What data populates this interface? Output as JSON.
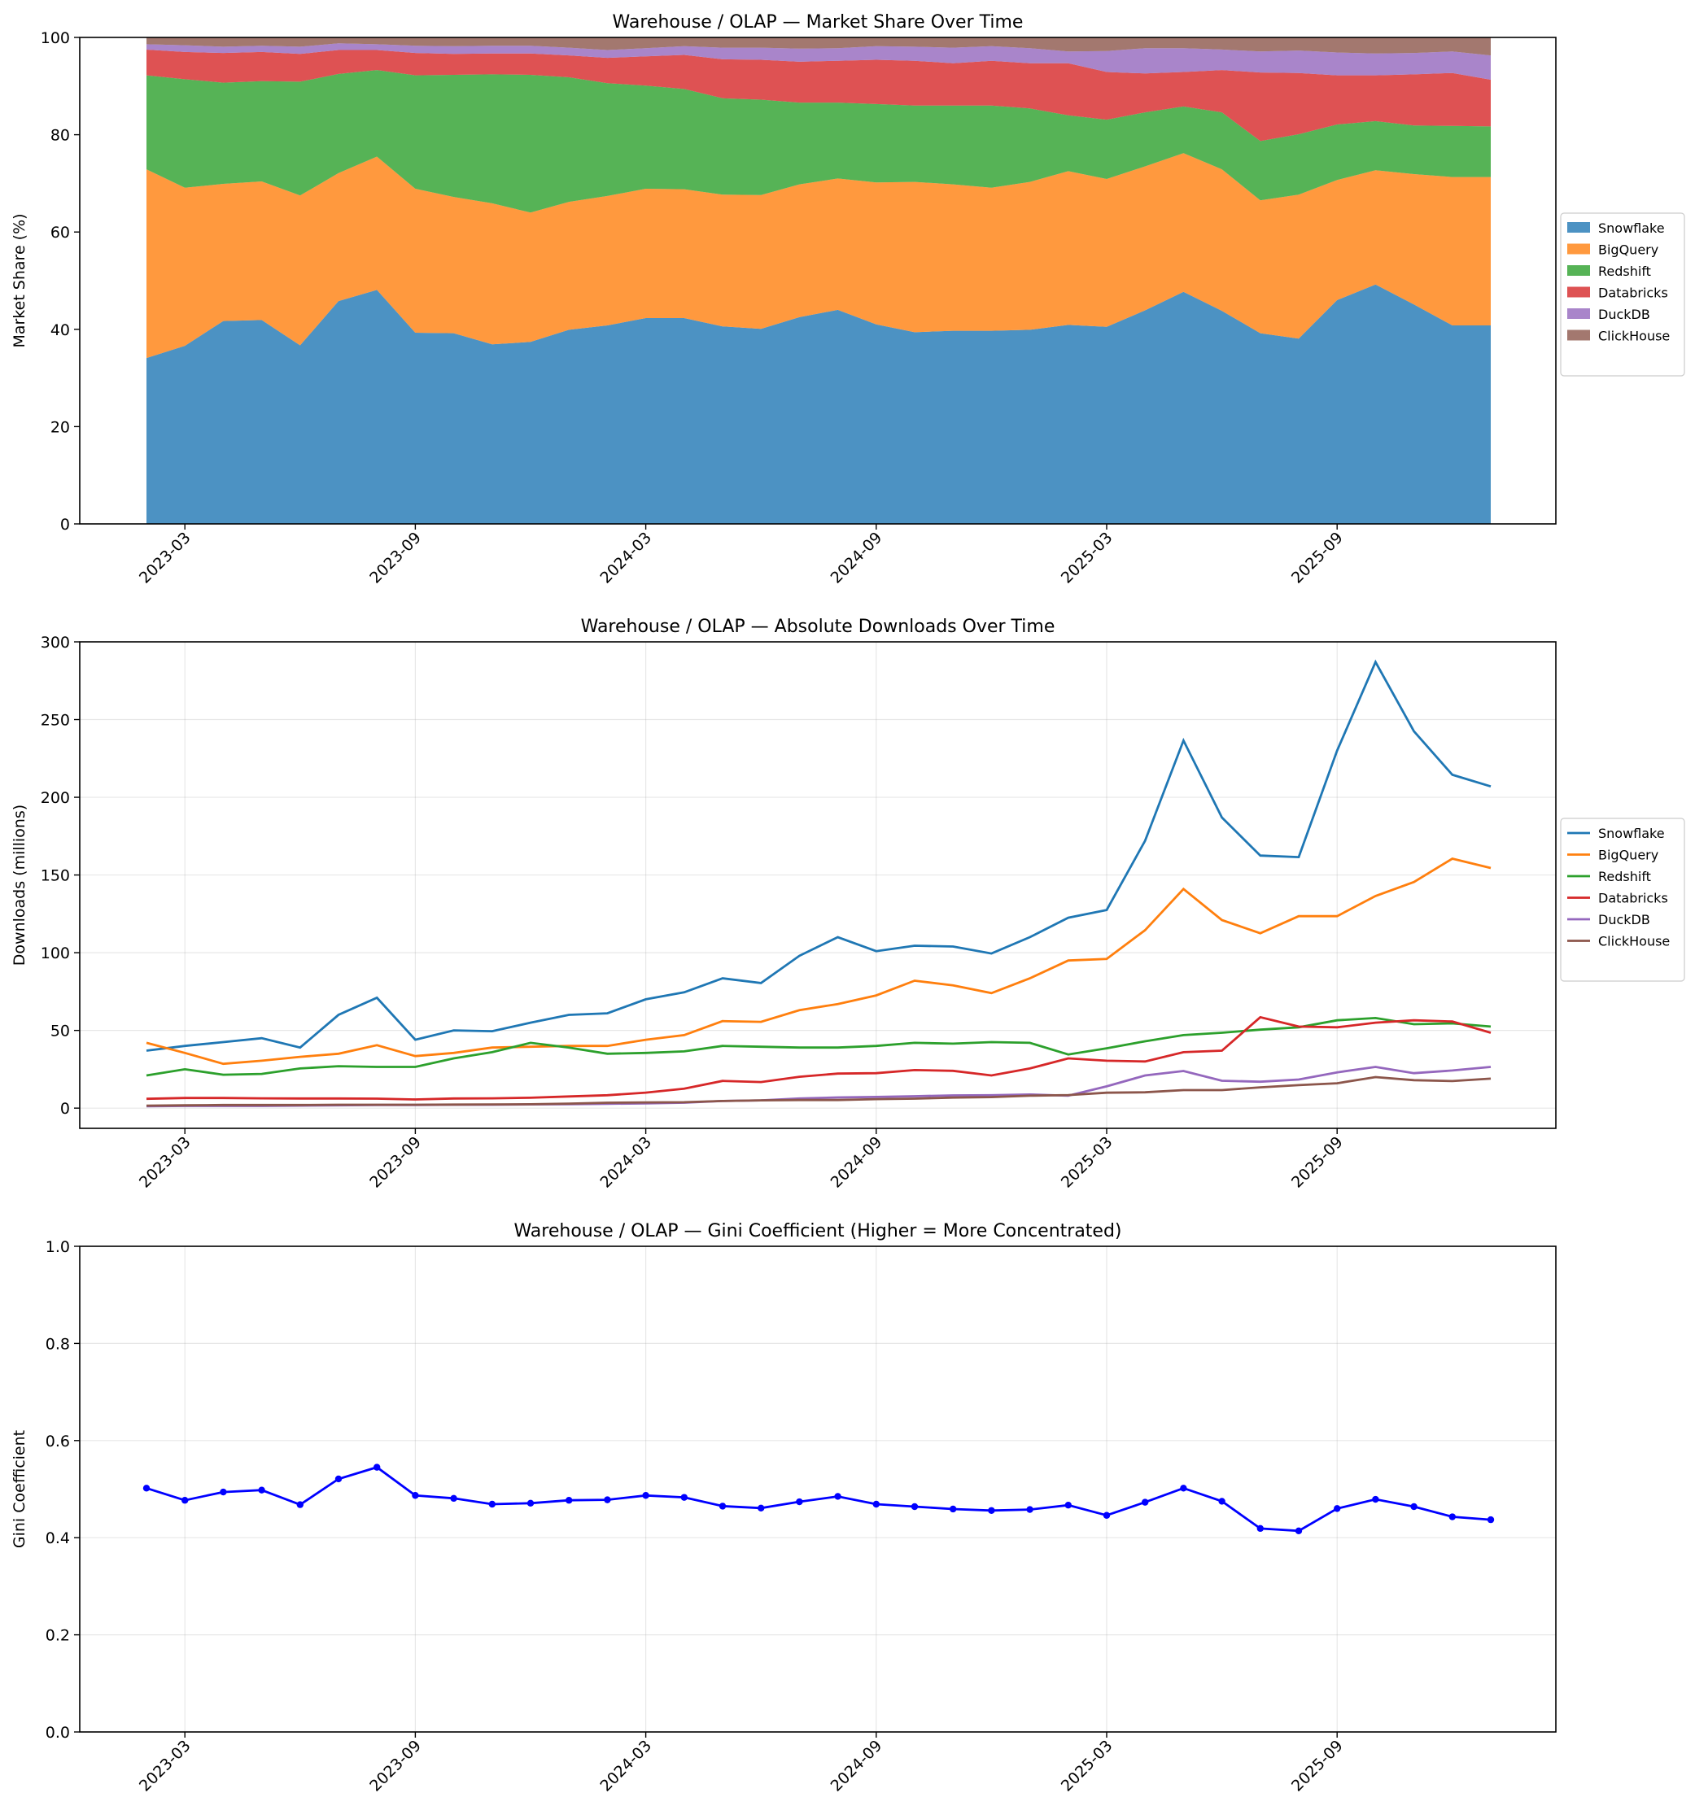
{
  "chart_data": [
    {
      "type": "area",
      "stacked": true,
      "title": "Warehouse / OLAP — Market Share Over Time",
      "ylabel": "Market Share (%)",
      "xlabel": "",
      "ylim": [
        0,
        100
      ],
      "yticks": [
        0,
        20,
        40,
        60,
        80,
        100
      ],
      "xticks": [
        "2023-03",
        "2023-09",
        "2024-03",
        "2024-09",
        "2025-03",
        "2025-09"
      ],
      "grid": false,
      "legend": "center right, outside plot",
      "x": [
        "2023-02",
        "2023-03",
        "2023-04",
        "2023-05",
        "2023-06",
        "2023-07",
        "2023-08",
        "2023-09",
        "2023-10",
        "2023-11",
        "2023-12",
        "2024-01",
        "2024-02",
        "2024-03",
        "2024-04",
        "2024-05",
        "2024-06",
        "2024-07",
        "2024-08",
        "2024-09",
        "2024-10",
        "2024-11",
        "2024-12",
        "2025-01",
        "2025-02",
        "2025-03",
        "2025-04",
        "2025-05",
        "2025-06",
        "2025-07",
        "2025-08",
        "2025-09",
        "2025-10",
        "2025-11",
        "2025-12",
        "2026-01"
      ],
      "series": [
        {
          "name": "Snowflake",
          "color": "#1f77b4",
          "values": [
            34.1,
            36.6,
            41.7,
            41.9,
            36.7,
            45.8,
            48.1,
            39.3,
            39.2,
            36.9,
            37.4,
            39.9,
            40.8,
            42.3,
            42.3,
            40.6,
            40.1,
            42.5,
            44.0,
            41.0,
            39.4,
            39.7,
            39.7,
            39.9,
            40.9,
            40.5,
            43.9,
            47.7,
            43.8,
            39.2,
            38.1,
            46.0,
            49.2,
            45.1,
            40.8,
            40.8
          ],
          "values_raw_cum": [
            34.1,
            36.6,
            41.7,
            41.9,
            36.7,
            45.8,
            48.1,
            39.3,
            39.2,
            36.9,
            37.4,
            39.9,
            40.8,
            42.3,
            42.3,
            40.6,
            40.1,
            42.5,
            44.0,
            41.0,
            39.4,
            39.7,
            39.7,
            39.9,
            40.9,
            40.5,
            43.9,
            47.7,
            43.8,
            39.2,
            38.1,
            46.0,
            49.2,
            45.1,
            40.8,
            40.8
          ]
        },
        {
          "name": "BigQuery",
          "color": "#ff7f0e",
          "values": [
            38.8,
            32.5,
            28.2,
            28.5,
            30.8,
            26.3,
            27.4,
            29.6,
            28.0,
            29.0,
            26.6,
            26.3,
            26.6,
            26.6,
            26.5,
            27.1,
            27.5,
            27.3,
            27.0,
            29.2,
            30.9,
            30.1,
            29.4,
            30.4,
            31.6,
            30.4,
            29.6,
            28.5,
            29.1,
            27.3,
            29.6,
            24.7,
            23.5,
            26.8,
            30.5,
            30.5
          ]
        },
        {
          "name": "Redshift",
          "color": "#2ca02c",
          "values": [
            19.3,
            22.3,
            20.8,
            20.6,
            23.4,
            20.4,
            17.8,
            23.3,
            25.1,
            26.5,
            28.3,
            25.6,
            23.2,
            21.2,
            20.6,
            19.8,
            19.6,
            16.8,
            15.6,
            16.1,
            15.7,
            16.2,
            16.9,
            15.1,
            11.5,
            12.2,
            11.1,
            9.6,
            11.7,
            12.2,
            12.4,
            11.4,
            10.1,
            10.0,
            10.5,
            10.4
          ]
        },
        {
          "name": "Databricks",
          "color": "#d62728",
          "values": [
            5.3,
            5.6,
            6.1,
            6.0,
            5.7,
            4.9,
            4.1,
            4.6,
            4.3,
            4.3,
            4.4,
            4.5,
            5.2,
            6.0,
            7.0,
            8.0,
            8.2,
            8.4,
            8.6,
            9.1,
            9.2,
            8.7,
            9.2,
            9.3,
            10.7,
            9.8,
            8.0,
            7.1,
            8.7,
            14.1,
            12.6,
            10.1,
            9.4,
            10.5,
            10.9,
            9.6
          ]
        },
        {
          "name": "DuckDB",
          "color": "#9467bd",
          "values": [
            1.1,
            1.4,
            1.3,
            1.3,
            1.5,
            1.4,
            1.2,
            1.5,
            1.6,
            1.6,
            1.6,
            1.6,
            1.6,
            1.7,
            1.8,
            2.4,
            2.5,
            2.7,
            2.6,
            2.8,
            2.9,
            3.2,
            3.0,
            3.1,
            2.4,
            4.3,
            5.2,
            4.9,
            4.2,
            4.3,
            4.6,
            4.7,
            4.5,
            4.4,
            4.4,
            5.0
          ]
        },
        {
          "name": "ClickHouse",
          "color": "#8c564b",
          "values": [
            1.4,
            1.6,
            1.9,
            1.7,
            1.9,
            1.2,
            1.4,
            1.7,
            1.8,
            1.7,
            1.7,
            2.1,
            2.6,
            2.2,
            1.8,
            2.1,
            2.1,
            2.3,
            2.2,
            1.8,
            1.9,
            2.1,
            1.8,
            2.2,
            2.9,
            2.8,
            2.2,
            2.2,
            2.5,
            2.9,
            2.7,
            3.1,
            3.3,
            3.2,
            2.9,
            3.7
          ]
        }
      ]
    },
    {
      "type": "line",
      "title": "Warehouse / OLAP — Absolute Downloads Over Time",
      "ylabel": "Downloads (millions)",
      "xlabel": "",
      "ylim": [
        -13,
        300
      ],
      "yticks": [
        0,
        50,
        100,
        150,
        200,
        250,
        300
      ],
      "xticks": [
        "2023-03",
        "2023-09",
        "2024-03",
        "2024-09",
        "2025-03",
        "2025-09"
      ],
      "grid": true,
      "legend": "center right, outside plot",
      "x": [
        "2023-02",
        "2023-03",
        "2023-04",
        "2023-05",
        "2023-06",
        "2023-07",
        "2023-08",
        "2023-09",
        "2023-10",
        "2023-11",
        "2023-12",
        "2024-01",
        "2024-02",
        "2024-03",
        "2024-04",
        "2024-05",
        "2024-06",
        "2024-07",
        "2024-08",
        "2024-09",
        "2024-10",
        "2024-11",
        "2024-12",
        "2025-01",
        "2025-02",
        "2025-03",
        "2025-04",
        "2025-05",
        "2025-06",
        "2025-07",
        "2025-08",
        "2025-09",
        "2025-10",
        "2025-11",
        "2025-12",
        "2026-01"
      ],
      "series": [
        {
          "name": "Snowflake",
          "color": "#1f77b4",
          "values": [
            37,
            40,
            42.5,
            45,
            39,
            60,
            71,
            44,
            50,
            49.5,
            55,
            60,
            61,
            70,
            74.5,
            83.5,
            80.5,
            98,
            110,
            101,
            104.5,
            104,
            99.5,
            110,
            122.5,
            127.5,
            172,
            236.5,
            187,
            162.5,
            161.5,
            230,
            287,
            242.5,
            214.5,
            207
          ]
        },
        {
          "name": "BigQuery",
          "color": "#ff7f0e",
          "values": [
            42,
            35.5,
            28.5,
            30.5,
            33,
            35,
            40.5,
            33.5,
            35.5,
            39,
            39.5,
            40,
            40,
            44,
            47,
            56,
            55.5,
            63,
            67,
            72.5,
            82,
            79,
            74,
            83.5,
            95,
            96,
            114.5,
            141,
            121,
            112.5,
            123.5,
            123.5,
            136.5,
            145.5,
            160.5,
            154.5
          ]
        },
        {
          "name": "Redshift",
          "color": "#2ca02c",
          "values": [
            21,
            25,
            21.5,
            22,
            25.5,
            27,
            26.5,
            26.5,
            32,
            36,
            42,
            39,
            35,
            35.5,
            36.5,
            40,
            39.5,
            39,
            39,
            40,
            42,
            41.5,
            42.5,
            42,
            34.5,
            38.5,
            43,
            47,
            48.5,
            50.5,
            52,
            56.5,
            58,
            54,
            54.5,
            52.5
          ]
        },
        {
          "name": "Databricks",
          "color": "#d62728",
          "values": [
            6,
            6.5,
            6.5,
            6.3,
            6.2,
            6.2,
            6.1,
            5.6,
            6.2,
            6.3,
            6.7,
            7.5,
            8.3,
            10,
            12.5,
            17.5,
            16.8,
            20.2,
            22.2,
            22.5,
            24.5,
            24,
            21,
            25.5,
            32,
            30.5,
            30,
            36,
            37,
            58.5,
            52.5,
            52,
            55,
            56.5,
            55.7,
            48.5
          ]
        },
        {
          "name": "DuckDB",
          "color": "#9467bd",
          "values": [
            1.2,
            1.4,
            1.4,
            1.4,
            1.6,
            1.8,
            2,
            2,
            2.2,
            2.2,
            2.4,
            2.5,
            2.8,
            3,
            3.5,
            4.6,
            5,
            6.2,
            6.9,
            7.2,
            7.7,
            8.2,
            8.3,
            8.8,
            8,
            14,
            21,
            23.9,
            17.6,
            17,
            18.4,
            23,
            26.5,
            22.5,
            24.2,
            26.5
          ]
        },
        {
          "name": "ClickHouse",
          "color": "#8c564b",
          "values": [
            1.6,
            1.8,
            2,
            2,
            2,
            2.2,
            2.2,
            2.2,
            2.3,
            2.4,
            2.5,
            2.9,
            3.5,
            3.7,
            3.8,
            4.6,
            5,
            5.2,
            5.2,
            5.8,
            6.1,
            6.8,
            7.1,
            8,
            8.4,
            9.9,
            10.2,
            11.6,
            11.6,
            13.4,
            14.8,
            16,
            20,
            18,
            17.4,
            19
          ]
        }
      ]
    },
    {
      "type": "line",
      "title": "Warehouse / OLAP — Gini Coefficient (Higher = More Concentrated)",
      "ylabel": "Gini Coefficient",
      "xlabel": "",
      "ylim": [
        0,
        1
      ],
      "yticks": [
        "0.0",
        "0.2",
        "0.4",
        "0.6",
        "0.8",
        "1.0"
      ],
      "xticks": [
        "2023-03",
        "2023-09",
        "2024-03",
        "2024-09",
        "2025-03",
        "2025-09"
      ],
      "grid": true,
      "x": [
        "2023-02",
        "2023-03",
        "2023-04",
        "2023-05",
        "2023-06",
        "2023-07",
        "2023-08",
        "2023-09",
        "2023-10",
        "2023-11",
        "2023-12",
        "2024-01",
        "2024-02",
        "2024-03",
        "2024-04",
        "2024-05",
        "2024-06",
        "2024-07",
        "2024-08",
        "2024-09",
        "2024-10",
        "2024-11",
        "2024-12",
        "2025-01",
        "2025-02",
        "2025-03",
        "2025-04",
        "2025-05",
        "2025-06",
        "2025-07",
        "2025-08",
        "2025-09",
        "2025-10",
        "2025-11",
        "2025-12",
        "2026-01"
      ],
      "series": [
        {
          "name": "",
          "color": "#0000ff",
          "values": [
            0.502,
            0.477,
            0.494,
            0.498,
            0.468,
            0.521,
            0.545,
            0.487,
            0.481,
            0.469,
            0.471,
            0.477,
            0.478,
            0.487,
            0.483,
            0.465,
            0.461,
            0.474,
            0.485,
            0.469,
            0.464,
            0.459,
            0.456,
            0.458,
            0.467,
            0.446,
            0.473,
            0.502,
            0.475,
            0.419,
            0.414,
            0.46,
            0.479,
            0.464,
            0.443,
            0.437
          ]
        }
      ]
    }
  ]
}
